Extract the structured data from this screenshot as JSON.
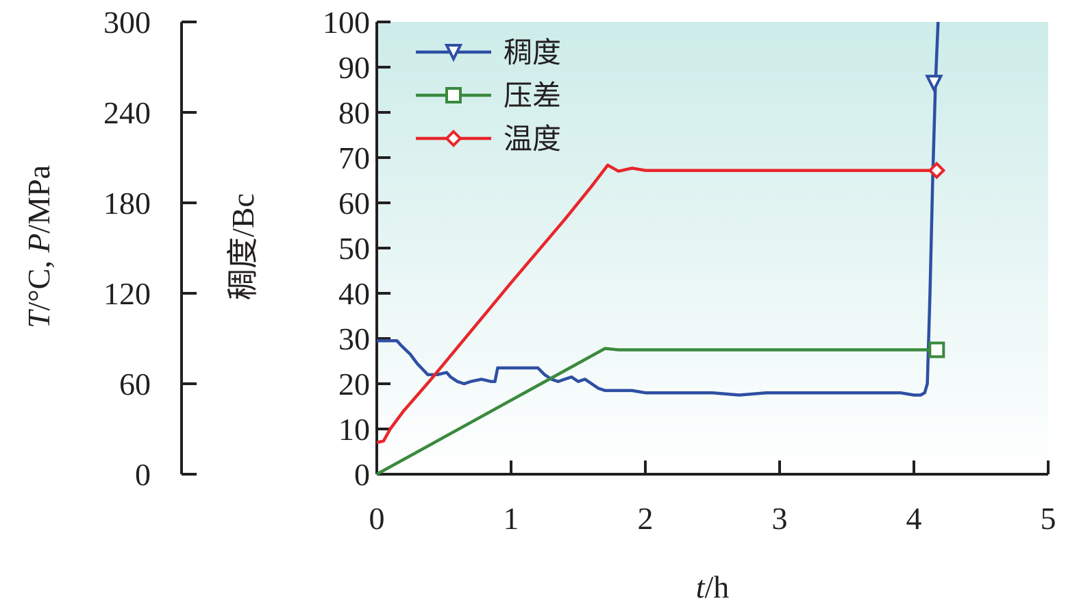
{
  "chart_data": {
    "type": "line",
    "xlabel": "t/h",
    "xlabel_italic": "t",
    "xlabel_unit": "/h",
    "ylabel": "稠度/Bc",
    "y2label": "T/°C, P/MPa",
    "y2label_parts": [
      "T",
      "/°C, ",
      "P",
      "/MPa"
    ],
    "xlim": [
      0,
      5
    ],
    "ylim": [
      0,
      100
    ],
    "y2lim": [
      0,
      300
    ],
    "xticks": [
      "0",
      "1",
      "2",
      "3",
      "4",
      "5"
    ],
    "yticks": [
      "0",
      "10",
      "20",
      "30",
      "40",
      "50",
      "60",
      "70",
      "80",
      "90",
      "100"
    ],
    "y2ticks": [
      "0",
      "60",
      "120",
      "180",
      "240",
      "300"
    ],
    "grid": false,
    "background_gradient": [
      "#cdece9",
      "#ffffff"
    ],
    "legend_position": "top-left",
    "series": [
      {
        "name": "稠度",
        "color": "#2e4fa3",
        "marker": "triangle-down",
        "axis": "left",
        "x": [
          0,
          0.15,
          0.18,
          0.25,
          0.3,
          0.38,
          0.45,
          0.52,
          0.55,
          0.6,
          0.65,
          0.7,
          0.78,
          0.85,
          0.88,
          0.9,
          1.0,
          1.1,
          1.2,
          1.25,
          1.3,
          1.35,
          1.4,
          1.45,
          1.5,
          1.55,
          1.6,
          1.65,
          1.7,
          1.9,
          2.0,
          2.2,
          2.5,
          2.7,
          2.9,
          3.1,
          3.3,
          3.6,
          3.9,
          4.0,
          4.05,
          4.08,
          4.1,
          4.12,
          4.14,
          4.16,
          4.18
        ],
        "y": [
          29.5,
          29.5,
          28.5,
          26.5,
          24.5,
          22.0,
          22.0,
          22.5,
          21.5,
          20.5,
          20.0,
          20.5,
          21.0,
          20.5,
          20.5,
          23.5,
          23.5,
          23.5,
          23.5,
          22.0,
          21.0,
          20.5,
          21.0,
          21.5,
          20.5,
          21.0,
          20.0,
          19.0,
          18.5,
          18.5,
          18.0,
          18.0,
          18.0,
          17.5,
          18.0,
          18.0,
          18.0,
          18.0,
          18.0,
          17.5,
          17.5,
          18.0,
          20.0,
          40.0,
          65.0,
          86.0,
          100.0
        ],
        "marker_at": [
          4.15,
          86.5
        ]
      },
      {
        "name": "压差",
        "color": "#3a8a3e",
        "marker": "square",
        "axis": "right",
        "x": [
          0,
          1.7,
          1.8,
          2.0,
          2.5,
          3.0,
          3.5,
          4.0,
          4.17
        ],
        "y": [
          0,
          83.4,
          82.5,
          82.5,
          82.5,
          82.5,
          82.5,
          82.5,
          82.5
        ],
        "marker_at": [
          4.17,
          82.5
        ]
      },
      {
        "name": "温度",
        "color": "#e8262b",
        "marker": "diamond",
        "axis": "right",
        "x": [
          0,
          0.05,
          0.1,
          0.2,
          0.4,
          0.6,
          0.8,
          1.0,
          1.2,
          1.4,
          1.6,
          1.72,
          1.8,
          1.9,
          2.0,
          2.5,
          3.0,
          3.5,
          4.0,
          4.17
        ],
        "y": [
          21,
          22,
          30,
          42,
          62.5,
          84,
          105.5,
          127,
          148,
          169,
          191,
          205,
          201,
          203,
          201.5,
          201.5,
          201.5,
          201.5,
          201.5,
          201.5
        ],
        "marker_at": [
          4.17,
          201.5
        ]
      }
    ]
  }
}
